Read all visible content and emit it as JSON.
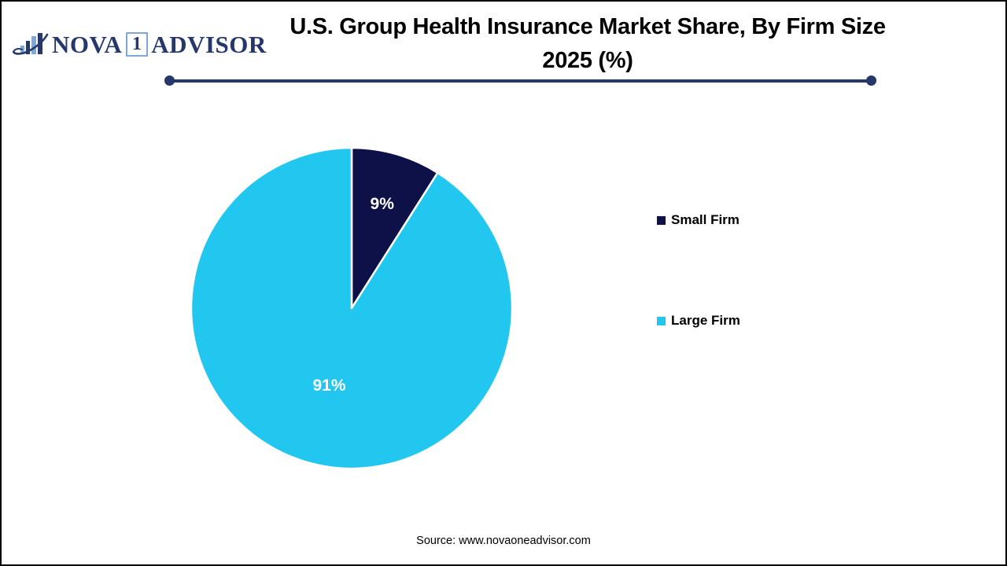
{
  "logo": {
    "word1": "NOVA",
    "word2": "1",
    "word3": "ADVISOR",
    "navy": "#26386B",
    "light_blue": "#7FA8D9"
  },
  "title": {
    "line1": "U.S. Group Health Insurance Market Share, By Firm Size",
    "line2": "2025 (%)"
  },
  "divider": {
    "color": "#26386B"
  },
  "legend": {
    "items": [
      {
        "label": "Small Firm"
      },
      {
        "label": "Large Firm"
      }
    ]
  },
  "source": "Source: www.novaoneadvisor.com",
  "chart_data": {
    "type": "pie",
    "title": "U.S. Group Health Insurance Market Share, By Firm Size 2025 (%)",
    "categories": [
      "Small Firm",
      "Large Firm"
    ],
    "values": [
      9,
      91
    ],
    "labels": [
      "9%",
      "91%"
    ],
    "colors": [
      "#0D1148",
      "#22C7F0"
    ],
    "slice_border_color": "#FFFFFF",
    "start_angle_deg": -90,
    "direction": "clockwise",
    "label_radius_fraction": [
      0.68,
      0.5
    ],
    "legend_position": "right",
    "legend_entries": [
      "Small Firm",
      "Large Firm"
    ]
  }
}
